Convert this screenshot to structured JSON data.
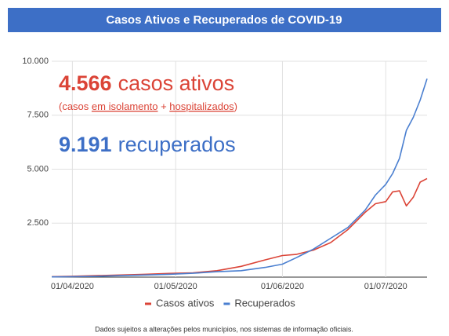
{
  "chart_data": {
    "type": "line",
    "title": "Casos Ativos e Recuperados de COVID-19",
    "annotations": {
      "active_number": "4.566",
      "active_text": "casos ativos",
      "note_open": "(casos ",
      "note_isolation": "em isolamento",
      "note_plus": " + ",
      "note_hospital": "hospitalizados",
      "note_close": ")",
      "recovered_number": "9.191",
      "recovered_text": "recuperados"
    },
    "footer": "Dados sujeitos a alterações pelos municípios, nos sistemas de informação oficiais.",
    "x": [
      "2020-03-26",
      "2020-04-01",
      "2020-04-08",
      "2020-04-15",
      "2020-04-22",
      "2020-04-29",
      "2020-05-06",
      "2020-05-13",
      "2020-05-20",
      "2020-05-27",
      "2020-06-01",
      "2020-06-05",
      "2020-06-10",
      "2020-06-15",
      "2020-06-20",
      "2020-06-25",
      "2020-06-28",
      "2020-07-01",
      "2020-07-03",
      "2020-07-05",
      "2020-07-07",
      "2020-07-09",
      "2020-07-11",
      "2020-07-13"
    ],
    "series": [
      {
        "name": "Casos ativos",
        "color": "#db4437",
        "values": [
          20,
          40,
          70,
          100,
          130,
          170,
          200,
          300,
          500,
          800,
          1000,
          1050,
          1250,
          1600,
          2200,
          3000,
          3400,
          3500,
          3950,
          4000,
          3300,
          3700,
          4400,
          4566
        ]
      },
      {
        "name": "Recuperados",
        "color": "#4a7fd0",
        "values": [
          10,
          20,
          40,
          70,
          100,
          130,
          180,
          250,
          300,
          450,
          600,
          900,
          1300,
          1800,
          2300,
          3100,
          3800,
          4300,
          4800,
          5500,
          6800,
          7400,
          8200,
          9191
        ]
      }
    ],
    "xlim": [
      "2020-03-26",
      "2020-07-13"
    ],
    "xticks": [
      {
        "value": "2020-04-01",
        "label": "01/04/2020"
      },
      {
        "value": "2020-05-01",
        "label": "01/05/2020"
      },
      {
        "value": "2020-06-01",
        "label": "01/06/2020"
      },
      {
        "value": "2020-07-01",
        "label": "01/07/2020"
      }
    ],
    "ylim": [
      0,
      10000
    ],
    "yticks": [
      {
        "value": 2500,
        "label": "2.500"
      },
      {
        "value": 5000,
        "label": "5.000"
      },
      {
        "value": 7500,
        "label": "7.500"
      },
      {
        "value": 10000,
        "label": "10.000"
      }
    ],
    "grid": true,
    "legend": "bottom"
  }
}
